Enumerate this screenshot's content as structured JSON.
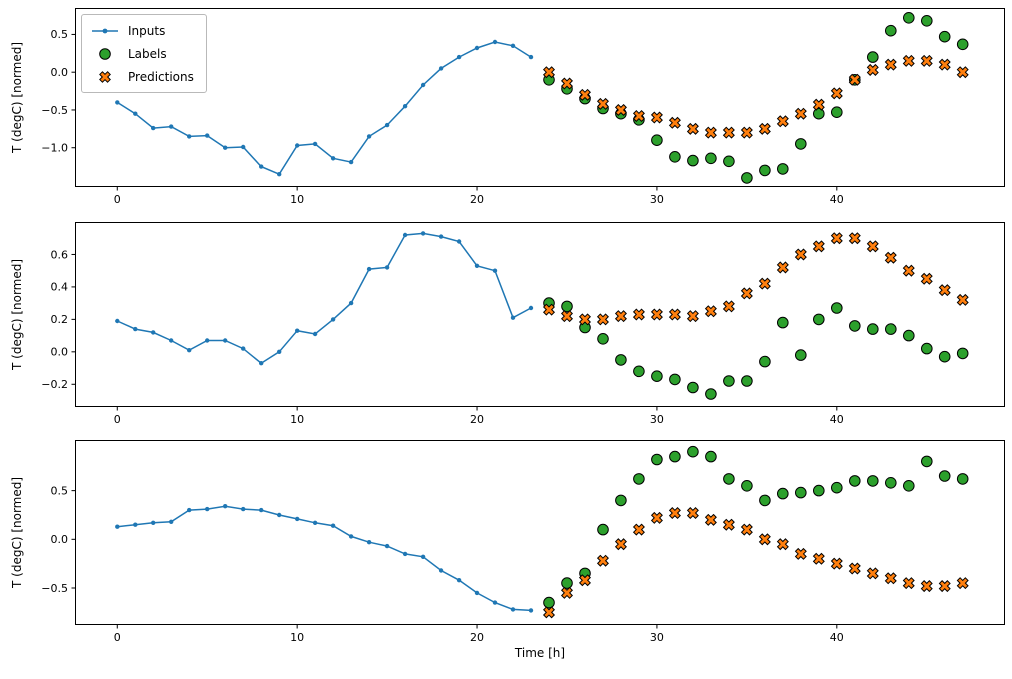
{
  "figure": {
    "background": "#ffffff",
    "xlabel": "Time [h]",
    "ylabel": "T (degC) [normed]",
    "legend": {
      "position": "upper left",
      "items": [
        {
          "label": "Inputs",
          "marker": "line-dot",
          "color": "#1f77b4",
          "edge": "#1f77b4"
        },
        {
          "label": "Labels",
          "marker": "circle",
          "color": "#2ca02c",
          "edge": "#000000"
        },
        {
          "label": "Predictions",
          "marker": "x",
          "color": "#ff7f0e",
          "edge": "#000000"
        }
      ]
    }
  },
  "chart_data": [
    {
      "type": "line",
      "title": "",
      "xlabel": "",
      "ylabel": "T (degC) [normed]",
      "xlim": [
        -2.35,
        49.35
      ],
      "ylim": [
        -1.52,
        0.85
      ],
      "xticks": [
        0,
        10,
        20,
        30,
        40
      ],
      "yticks": [
        0.5,
        0.0,
        -0.5,
        -1.0
      ],
      "grid": false,
      "series": [
        {
          "name": "Inputs",
          "style": "line-dot",
          "color": "#1f77b4",
          "x": [
            0,
            1,
            2,
            3,
            4,
            5,
            6,
            7,
            8,
            9,
            10,
            11,
            12,
            13,
            14,
            15,
            16,
            17,
            18,
            19,
            20,
            21,
            22,
            23
          ],
          "y": [
            -0.4,
            -0.55,
            -0.74,
            -0.72,
            -0.85,
            -0.84,
            -1.0,
            -0.99,
            -1.25,
            -1.35,
            -0.97,
            -0.95,
            -1.14,
            -1.19,
            -0.85,
            -0.7,
            -0.45,
            -0.17,
            0.05,
            0.2,
            0.32,
            0.4,
            0.35,
            0.2
          ]
        },
        {
          "name": "Labels",
          "style": "circle",
          "fill": "#2ca02c",
          "edge": "#000000",
          "x": [
            24,
            25,
            26,
            27,
            28,
            29,
            30,
            31,
            32,
            33,
            34,
            35,
            36,
            37,
            38,
            39,
            40,
            41,
            42,
            43,
            44,
            45,
            46,
            47
          ],
          "y": [
            -0.1,
            -0.22,
            -0.35,
            -0.48,
            -0.55,
            -0.63,
            -0.9,
            -1.12,
            -1.17,
            -1.14,
            -1.18,
            -1.4,
            -1.3,
            -1.28,
            -0.95,
            -0.55,
            -0.53,
            -0.1,
            0.2,
            0.55,
            0.72,
            0.68,
            0.47,
            0.37
          ]
        },
        {
          "name": "Predictions",
          "style": "x",
          "fill": "#ff7f0e",
          "edge": "#000000",
          "x": [
            24,
            25,
            26,
            27,
            28,
            29,
            30,
            31,
            32,
            33,
            34,
            35,
            36,
            37,
            38,
            39,
            40,
            41,
            42,
            43,
            44,
            45,
            46,
            47
          ],
          "y": [
            0.0,
            -0.15,
            -0.3,
            -0.42,
            -0.5,
            -0.58,
            -0.6,
            -0.67,
            -0.75,
            -0.8,
            -0.8,
            -0.8,
            -0.75,
            -0.65,
            -0.55,
            -0.43,
            -0.28,
            -0.1,
            0.03,
            0.1,
            0.15,
            0.15,
            0.1,
            0.0
          ]
        }
      ]
    },
    {
      "type": "line",
      "title": "",
      "xlabel": "",
      "ylabel": "T (degC) [normed]",
      "xlim": [
        -2.35,
        49.35
      ],
      "ylim": [
        -0.34,
        0.8
      ],
      "xticks": [
        0,
        10,
        20,
        30,
        40
      ],
      "yticks": [
        0.6,
        0.4,
        0.2,
        0.0,
        -0.2
      ],
      "grid": false,
      "series": [
        {
          "name": "Inputs",
          "style": "line-dot",
          "color": "#1f77b4",
          "x": [
            0,
            1,
            2,
            3,
            4,
            5,
            6,
            7,
            8,
            9,
            10,
            11,
            12,
            13,
            14,
            15,
            16,
            17,
            18,
            19,
            20,
            21,
            22,
            23
          ],
          "y": [
            0.19,
            0.14,
            0.12,
            0.07,
            0.01,
            0.07,
            0.07,
            0.02,
            -0.07,
            0.0,
            0.13,
            0.11,
            0.2,
            0.3,
            0.51,
            0.52,
            0.72,
            0.73,
            0.71,
            0.68,
            0.53,
            0.5,
            0.21,
            0.27
          ]
        },
        {
          "name": "Labels",
          "style": "circle",
          "fill": "#2ca02c",
          "edge": "#000000",
          "x": [
            24,
            25,
            26,
            27,
            28,
            29,
            30,
            31,
            32,
            33,
            34,
            35,
            36,
            37,
            38,
            39,
            40,
            41,
            42,
            43,
            44,
            45,
            46,
            47
          ],
          "y": [
            0.3,
            0.28,
            0.15,
            0.08,
            -0.05,
            -0.12,
            -0.15,
            -0.17,
            -0.22,
            -0.26,
            -0.18,
            -0.18,
            -0.06,
            0.18,
            -0.02,
            0.2,
            0.27,
            0.16,
            0.14,
            0.14,
            0.1,
            0.02,
            -0.03,
            -0.01
          ]
        },
        {
          "name": "Predictions",
          "style": "x",
          "fill": "#ff7f0e",
          "edge": "#000000",
          "x": [
            24,
            25,
            26,
            27,
            28,
            29,
            30,
            31,
            32,
            33,
            34,
            35,
            36,
            37,
            38,
            39,
            40,
            41,
            42,
            43,
            44,
            45,
            46,
            47
          ],
          "y": [
            0.26,
            0.22,
            0.2,
            0.2,
            0.22,
            0.23,
            0.23,
            0.23,
            0.22,
            0.25,
            0.28,
            0.36,
            0.42,
            0.52,
            0.6,
            0.65,
            0.7,
            0.7,
            0.65,
            0.58,
            0.5,
            0.45,
            0.38,
            0.32
          ]
        }
      ]
    },
    {
      "type": "line",
      "title": "",
      "xlabel": "Time [h]",
      "ylabel": "T (degC) [normed]",
      "xlim": [
        -2.35,
        49.35
      ],
      "ylim": [
        -0.88,
        1.02
      ],
      "xticks": [
        0,
        10,
        20,
        30,
        40
      ],
      "yticks": [
        0.5,
        0.0,
        -0.5
      ],
      "grid": false,
      "series": [
        {
          "name": "Inputs",
          "style": "line-dot",
          "color": "#1f77b4",
          "x": [
            0,
            1,
            2,
            3,
            4,
            5,
            6,
            7,
            8,
            9,
            10,
            11,
            12,
            13,
            14,
            15,
            16,
            17,
            18,
            19,
            20,
            21,
            22,
            23
          ],
          "y": [
            0.13,
            0.15,
            0.17,
            0.18,
            0.3,
            0.31,
            0.34,
            0.31,
            0.3,
            0.25,
            0.21,
            0.17,
            0.14,
            0.03,
            -0.03,
            -0.07,
            -0.15,
            -0.18,
            -0.32,
            -0.42,
            -0.55,
            -0.65,
            -0.72,
            -0.73
          ]
        },
        {
          "name": "Labels",
          "style": "circle",
          "fill": "#2ca02c",
          "edge": "#000000",
          "x": [
            24,
            25,
            26,
            27,
            28,
            29,
            30,
            31,
            32,
            33,
            34,
            35,
            36,
            37,
            38,
            39,
            40,
            41,
            42,
            43,
            44,
            45,
            46,
            47
          ],
          "y": [
            -0.65,
            -0.45,
            -0.35,
            0.1,
            0.4,
            0.62,
            0.82,
            0.85,
            0.9,
            0.85,
            0.62,
            0.55,
            0.4,
            0.47,
            0.48,
            0.5,
            0.53,
            0.6,
            0.6,
            0.58,
            0.55,
            0.8,
            0.65,
            0.62
          ]
        },
        {
          "name": "Predictions",
          "style": "x",
          "fill": "#ff7f0e",
          "edge": "#000000",
          "x": [
            24,
            25,
            26,
            27,
            28,
            29,
            30,
            31,
            32,
            33,
            34,
            35,
            36,
            37,
            38,
            39,
            40,
            41,
            42,
            43,
            44,
            45,
            46,
            47
          ],
          "y": [
            -0.75,
            -0.55,
            -0.42,
            -0.22,
            -0.05,
            0.1,
            0.22,
            0.27,
            0.27,
            0.2,
            0.15,
            0.1,
            0.0,
            -0.05,
            -0.15,
            -0.2,
            -0.25,
            -0.3,
            -0.35,
            -0.4,
            -0.45,
            -0.48,
            -0.48,
            -0.45
          ]
        }
      ]
    }
  ]
}
